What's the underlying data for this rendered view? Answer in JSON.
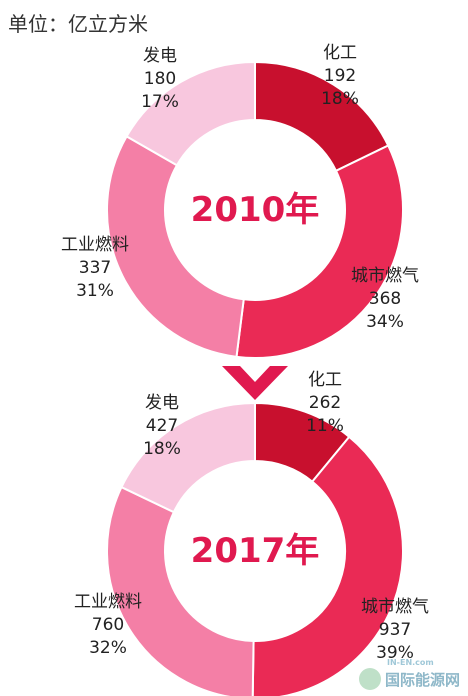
{
  "unit_label": "单位：亿立方米",
  "arrow_color": "#e0194f",
  "chart_data": [
    {
      "type": "pie",
      "center_label": "2010年",
      "slices": [
        {
          "label": "化工",
          "value": 192,
          "percent": "18%",
          "color": "#c8102e"
        },
        {
          "label": "城市燃气",
          "value": 368,
          "percent": "34%",
          "color": "#ea2a55"
        },
        {
          "label": "工业燃料",
          "value": 337,
          "percent": "31%",
          "color": "#f47fa6"
        },
        {
          "label": "发电",
          "value": 180,
          "percent": "17%",
          "color": "#f8c7de"
        }
      ]
    },
    {
      "type": "pie",
      "center_label": "2017年",
      "slices": [
        {
          "label": "化工",
          "value": 262,
          "percent": "11%",
          "color": "#c8102e"
        },
        {
          "label": "城市燃气",
          "value": 937,
          "percent": "39%",
          "color": "#ea2a55"
        },
        {
          "label": "工业燃料",
          "value": 760,
          "percent": "32%",
          "color": "#f47fa6"
        },
        {
          "label": "发电",
          "value": 427,
          "percent": "18%",
          "color": "#f8c7de"
        }
      ]
    }
  ],
  "watermark": {
    "brand": "国际能源网",
    "small": "IN-EN.com"
  }
}
